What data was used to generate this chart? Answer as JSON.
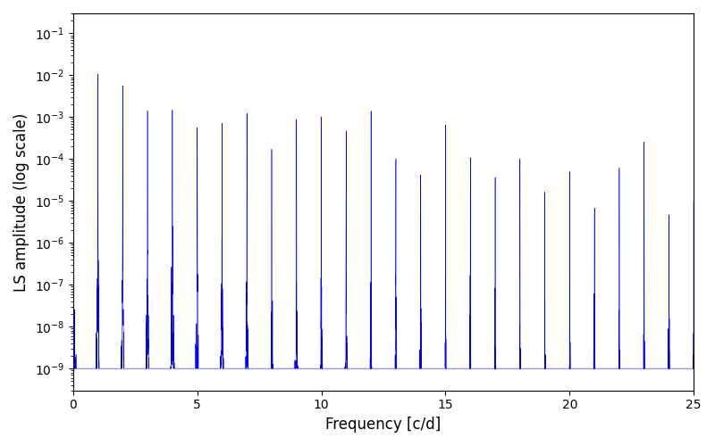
{
  "xlabel": "Frequency [c/d]",
  "ylabel": "LS amplitude (log scale)",
  "line_color": "#0000ff",
  "xlim": [
    0,
    25
  ],
  "ylim": [
    3e-10,
    0.3
  ],
  "freq_max": 25.0,
  "n_points": 10000,
  "seed": 7,
  "figsize": [
    8.0,
    5.0
  ],
  "dpi": 100
}
